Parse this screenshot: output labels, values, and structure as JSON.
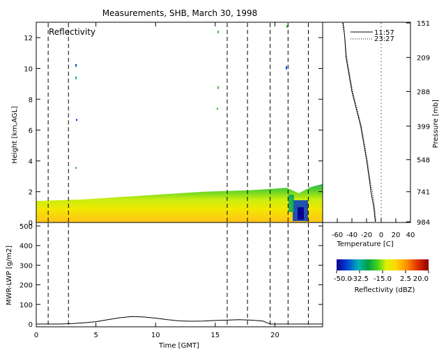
{
  "title": "Measurements, SHB, March 30, 1998",
  "panels": {
    "reflectivity": {
      "label": "Reflectivity",
      "ylabel": "Height [km,AGL]",
      "yticks": [
        "0",
        "2",
        "4",
        "6",
        "8",
        "10",
        "12"
      ]
    },
    "lwp": {
      "ylabel": "MWR-LWP [g/m2]",
      "yticks": [
        "0",
        "100",
        "200",
        "300",
        "400",
        "500"
      ]
    },
    "time_axis": {
      "xlabel": "Time [GMT]",
      "xticks": [
        "0",
        "5",
        "10",
        "15",
        "20"
      ]
    },
    "sounding": {
      "legend": [
        "11:57",
        "23:27"
      ],
      "xlabel": "Temperature [C]",
      "xticks": [
        "-60",
        "-40",
        "-20",
        "0",
        "20",
        "40"
      ],
      "ylabel": "Pressure [mb]",
      "pressure_ticks": [
        "151",
        "209",
        "288",
        "399",
        "548",
        "741",
        "984"
      ]
    },
    "colorbar": {
      "label": "Reflectivity (dBZ)",
      "ticks": [
        "-50.0",
        "-32.5",
        "-15.0",
        "2.5",
        "20.0"
      ],
      "range": [
        -50,
        20
      ]
    }
  },
  "chart_data": [
    {
      "type": "heatmap",
      "title": "Reflectivity",
      "xlabel": "Time [GMT]",
      "ylabel": "Height [km,AGL]",
      "xlim": [
        0,
        24
      ],
      "ylim": [
        0,
        13
      ],
      "cloud_top_km": {
        "x": [
          0,
          2,
          4,
          6,
          8,
          10,
          12,
          14,
          16,
          18,
          20,
          21,
          22,
          23,
          24
        ],
        "y": [
          1.4,
          1.45,
          1.5,
          1.6,
          1.7,
          1.8,
          1.9,
          2.0,
          2.05,
          2.1,
          2.2,
          2.25,
          1.9,
          2.3,
          2.5
        ]
      },
      "vertical_markers_hours": [
        1.0,
        2.7,
        16.0,
        17.7,
        19.6,
        21.1,
        22.8
      ],
      "colorbar": {
        "label": "Reflectivity (dBZ)",
        "min": -50.0,
        "max": 20.0,
        "ticks": [
          -50.0,
          -32.5,
          -15.0,
          2.5,
          20.0
        ]
      }
    },
    {
      "type": "line",
      "xlabel": "Time [GMT]",
      "ylabel": "MWR-LWP [g/m2]",
      "xlim": [
        0,
        24
      ],
      "ylim": [
        0,
        500
      ],
      "series": [
        {
          "x": [
            0,
            2,
            3,
            4,
            5,
            6,
            7,
            8,
            9,
            10,
            11,
            12,
            13,
            14,
            15,
            16,
            17,
            18,
            19,
            19.6,
            20,
            22,
            24
          ],
          "y": [
            0,
            0,
            2,
            6,
            12,
            22,
            32,
            38,
            36,
            30,
            22,
            16,
            14,
            15,
            18,
            20,
            22,
            20,
            15,
            0,
            0,
            0,
            0
          ]
        }
      ],
      "vertical_markers_hours": [
        1.0,
        2.7,
        16.0,
        17.7,
        19.6,
        21.1,
        22.8
      ]
    },
    {
      "type": "line",
      "xlabel": "Temperature [C]",
      "ylabel": "Pressure [mb]",
      "xlim": [
        -80,
        40
      ],
      "ylim": [
        984,
        151
      ],
      "series": [
        {
          "name": "11:57",
          "x": [
            -52,
            -50,
            -48,
            -40,
            -28,
            -20,
            -15,
            -14,
            -10,
            -8
          ],
          "y": [
            151,
            170,
            209,
            288,
            399,
            548,
            700,
            741,
            860,
            984
          ]
        },
        {
          "name": "23:27",
          "x": [
            -53,
            -50,
            -47,
            -39,
            -27,
            -19,
            -14,
            -12,
            -9,
            -7
          ],
          "y": [
            151,
            170,
            209,
            288,
            399,
            548,
            700,
            741,
            860,
            984
          ]
        }
      ]
    }
  ]
}
